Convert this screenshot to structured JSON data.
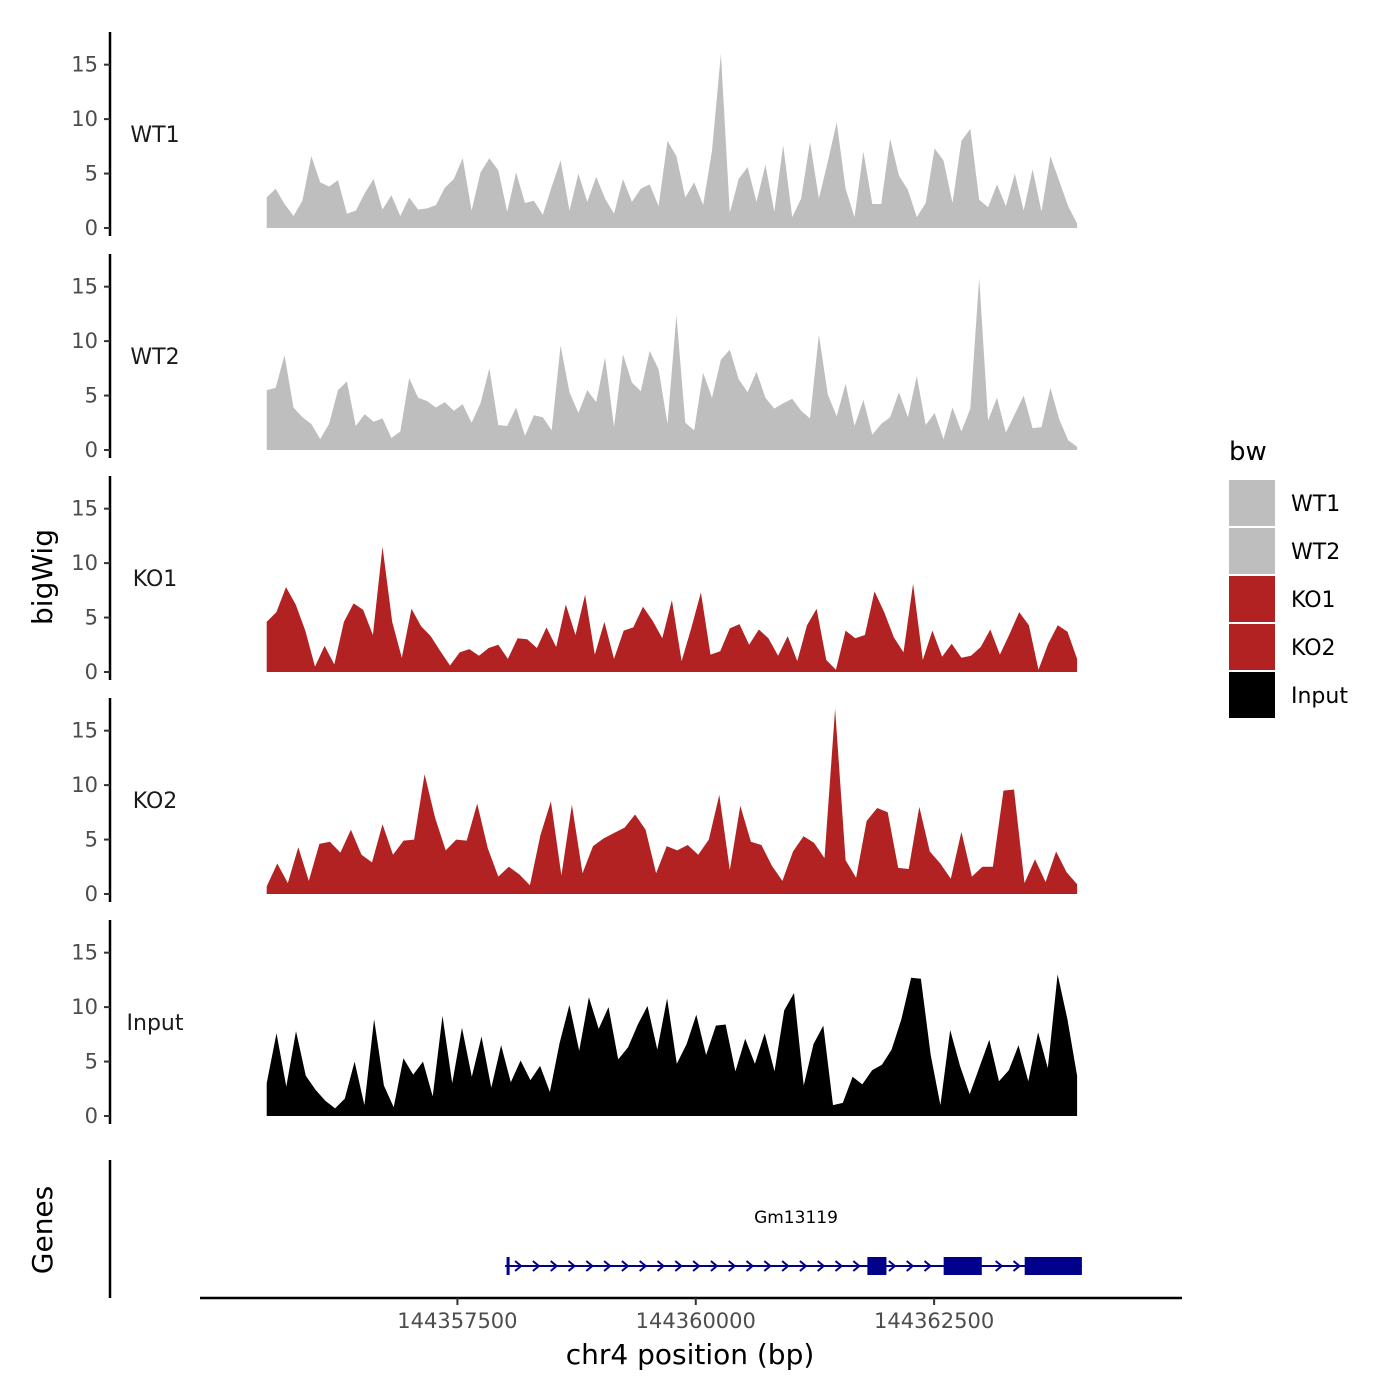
{
  "chart_data": {
    "type": "area",
    "title": "",
    "xlabel": "chr4 position (bp)",
    "ylabel": "bigWig",
    "genes_label": "Genes",
    "x_range": [
      144355500,
      144364000
    ],
    "xlim": [
      144354800,
      144365100
    ],
    "x_ticks": [
      144357500,
      144360000,
      144362500
    ],
    "x_tick_labels": [
      "144357500",
      "144360000",
      "144362500"
    ],
    "ylim": [
      0,
      18
    ],
    "y_ticks": [
      0,
      5,
      10,
      15
    ],
    "y_tick_labels": [
      "0",
      "5",
      "10",
      "15"
    ],
    "legend": {
      "title": "bw",
      "position": "right",
      "entries": [
        {
          "label": "WT1",
          "color": "#bebebe"
        },
        {
          "label": "WT2",
          "color": "#bebebe"
        },
        {
          "label": "KO1",
          "color": "#b22222"
        },
        {
          "label": "KO2",
          "color": "#b22222"
        },
        {
          "label": "Input",
          "color": "#000000"
        }
      ]
    },
    "series": [
      {
        "name": "WT1",
        "color": "#bebebe",
        "values": [
          2.8,
          3.6,
          2.2,
          1.1,
          2.5,
          6.6,
          4.2,
          3.8,
          4.4,
          1.3,
          1.6,
          3.2,
          4.5,
          1.7,
          3.0,
          1.1,
          2.8,
          1.7,
          1.8,
          2.1,
          3.7,
          4.5,
          6.4,
          1.6,
          5.1,
          6.4,
          5.3,
          1.5,
          5.1,
          2.3,
          2.5,
          1.2,
          3.8,
          6.2,
          1.6,
          5.0,
          2.4,
          4.7,
          2.7,
          1.3,
          4.5,
          2.4,
          3.6,
          4.0,
          2.0,
          8.0,
          6.6,
          2.8,
          4.2,
          2.1,
          7.1,
          16.0,
          1.4,
          4.5,
          5.6,
          2.4,
          5.8,
          1.5,
          7.6,
          1.0,
          2.7,
          7.9,
          2.7,
          6.1,
          9.7,
          3.6,
          1.0,
          7.0,
          2.2,
          2.2,
          8.2,
          4.8,
          3.5,
          1.0,
          2.3,
          7.3,
          6.2,
          2.3,
          8.0,
          9.1,
          2.6,
          1.9,
          4.0,
          2.0,
          5.0,
          1.6,
          5.4,
          1.5,
          6.6,
          4.3,
          2.0,
          0.4
        ]
      },
      {
        "name": "WT2",
        "color": "#bebebe",
        "values": [
          5.5,
          5.7,
          8.7,
          3.9,
          3.0,
          2.4,
          1.0,
          2.4,
          5.5,
          6.3,
          2.2,
          3.3,
          2.6,
          2.9,
          1.1,
          1.7,
          6.6,
          4.8,
          4.5,
          3.9,
          4.4,
          3.6,
          4.2,
          2.5,
          4.3,
          7.5,
          2.3,
          2.2,
          3.9,
          1.3,
          3.2,
          3.0,
          1.8,
          9.6,
          5.3,
          3.4,
          5.5,
          4.4,
          8.5,
          2.1,
          8.8,
          6.2,
          5.4,
          9.1,
          7.4,
          2.4,
          12.4,
          2.5,
          1.8,
          7.1,
          4.8,
          8.3,
          9.2,
          6.5,
          5.3,
          7.2,
          4.8,
          3.8,
          4.3,
          4.7,
          3.6,
          2.9,
          10.6,
          5.1,
          3.1,
          6.1,
          2.2,
          4.6,
          1.4,
          2.4,
          3.0,
          5.3,
          3.0,
          6.8,
          2.3,
          3.4,
          1.0,
          3.9,
          1.7,
          3.8,
          15.8,
          2.7,
          4.8,
          1.6,
          3.3,
          5.0,
          2.0,
          2.1,
          5.7,
          2.8,
          0.9,
          0.3
        ]
      },
      {
        "name": "KO1",
        "color": "#b22222",
        "values": [
          4.6,
          5.5,
          7.8,
          6.2,
          3.8,
          0.5,
          2.4,
          0.7,
          4.6,
          6.3,
          5.7,
          3.4,
          11.5,
          4.6,
          1.3,
          5.8,
          4.2,
          3.3,
          1.9,
          0.6,
          1.8,
          2.1,
          1.5,
          2.2,
          2.5,
          1.2,
          3.1,
          3.0,
          2.2,
          4.1,
          2.3,
          6.2,
          3.4,
          7.1,
          1.6,
          4.6,
          1.2,
          3.8,
          4.1,
          6.0,
          4.7,
          3.1,
          6.6,
          1.0,
          4.0,
          7.3,
          1.6,
          1.9,
          4.0,
          4.4,
          2.5,
          3.9,
          3.1,
          1.5,
          3.3,
          1.0,
          4.3,
          5.8,
          1.1,
          0.2,
          3.8,
          3.1,
          3.4,
          7.4,
          5.5,
          3.2,
          1.8,
          8.1,
          1.1,
          3.8,
          1.4,
          2.6,
          1.3,
          1.5,
          2.3,
          3.9,
          1.6,
          3.5,
          5.5,
          4.3,
          0.2,
          2.6,
          4.3,
          3.7,
          1.2
        ]
      },
      {
        "name": "KO2",
        "color": "#b22222",
        "values": [
          0.7,
          2.8,
          1.0,
          4.3,
          1.2,
          4.6,
          4.8,
          3.8,
          5.9,
          3.6,
          2.9,
          6.4,
          3.6,
          4.9,
          5.0,
          11.0,
          7.0,
          4.0,
          5.0,
          4.9,
          8.3,
          4.2,
          1.6,
          2.5,
          1.8,
          0.8,
          5.4,
          8.5,
          1.7,
          8.2,
          1.9,
          4.4,
          5.1,
          5.6,
          6.1,
          7.3,
          5.9,
          1.9,
          4.4,
          4.0,
          4.5,
          3.6,
          5.0,
          9.1,
          2.2,
          8.1,
          4.8,
          4.5,
          2.6,
          1.2,
          3.9,
          5.3,
          4.7,
          3.3,
          17.0,
          3.1,
          1.5,
          6.7,
          7.9,
          7.5,
          2.4,
          2.3,
          8.0,
          3.9,
          2.8,
          1.4,
          5.7,
          1.6,
          2.5,
          2.5,
          9.5,
          9.6,
          1.0,
          3.2,
          1.1,
          3.9,
          2.0,
          0.9
        ]
      },
      {
        "name": "Input",
        "color": "#000000",
        "values": [
          3.0,
          7.6,
          2.7,
          7.8,
          3.7,
          2.4,
          1.4,
          0.7,
          1.6,
          5.0,
          1.0,
          8.9,
          2.8,
          0.8,
          5.3,
          3.8,
          5.0,
          1.8,
          9.2,
          3.0,
          8.1,
          3.6,
          7.3,
          2.6,
          6.5,
          3.1,
          5.1,
          3.3,
          4.6,
          2.2,
          6.7,
          10.2,
          6.0,
          10.9,
          8.0,
          10.0,
          5.2,
          6.3,
          8.4,
          10.1,
          6.1,
          10.8,
          4.8,
          6.6,
          9.3,
          5.6,
          8.3,
          8.4,
          4.1,
          7.1,
          4.8,
          7.6,
          4.1,
          9.7,
          11.3,
          2.8,
          6.6,
          8.3,
          1.0,
          1.2,
          3.6,
          2.9,
          4.2,
          4.7,
          6.1,
          8.9,
          12.7,
          12.6,
          5.6,
          1.0,
          7.9,
          4.6,
          2.0,
          4.5,
          7.0,
          3.2,
          4.2,
          6.5,
          3.2,
          7.7,
          4.4,
          13.0,
          8.9,
          3.7
        ]
      }
    ],
    "gene": {
      "name": "Gm13119",
      "color": "#00008b",
      "strand": "+",
      "start": 144358000,
      "end": 144364050,
      "exons": [
        [
          144358000,
          144358020
        ],
        [
          144361800,
          144362000
        ],
        [
          144362600,
          144363000
        ],
        [
          144363450,
          144364050
        ]
      ]
    }
  }
}
